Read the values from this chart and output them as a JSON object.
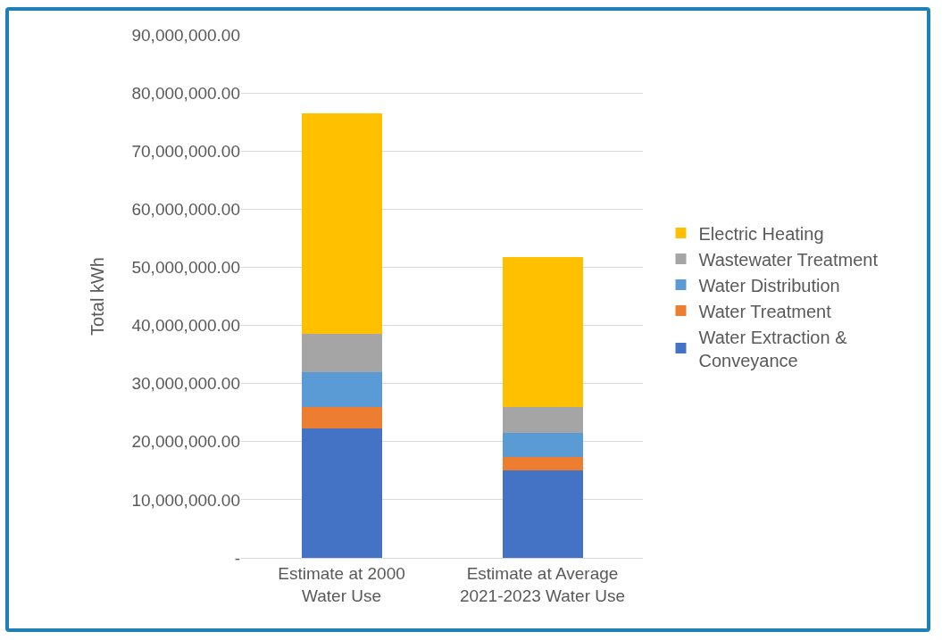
{
  "chart_data": {
    "type": "bar",
    "stacked": true,
    "ylabel": "Total kWh",
    "categories": [
      "Estimate at 2000 Water Use",
      "Estimate at Average 2021-2023 Water Use"
    ],
    "series": [
      {
        "name": "Water Extraction & Conveyance",
        "color": "#4472c4",
        "values": [
          22300000,
          15000000
        ]
      },
      {
        "name": "Water Treatment",
        "color": "#ed7d31",
        "values": [
          3700000,
          2400000
        ]
      },
      {
        "name": "Water Distribution",
        "color": "#5b9bd5",
        "values": [
          6000000,
          4100000
        ]
      },
      {
        "name": "Wastewater Treatment",
        "color": "#a5a5a5",
        "values": [
          6600000,
          4500000
        ]
      },
      {
        "name": "Electric Heating",
        "color": "#ffc000",
        "values": [
          37900000,
          25800000
        ]
      }
    ],
    "ylim": [
      0,
      90000000
    ],
    "yticks": [
      {
        "value": 0,
        "label": "-"
      },
      {
        "value": 10000000,
        "label": "10,000,000.00"
      },
      {
        "value": 20000000,
        "label": "20,000,000.00"
      },
      {
        "value": 30000000,
        "label": "30,000,000.00"
      },
      {
        "value": 40000000,
        "label": "40,000,000.00"
      },
      {
        "value": 50000000,
        "label": "50,000,000.00"
      },
      {
        "value": 60000000,
        "label": "60,000,000.00"
      },
      {
        "value": 70000000,
        "label": "70,000,000.00"
      },
      {
        "value": 80000000,
        "label": "80,000,000.00"
      },
      {
        "value": 90000000,
        "label": "90,000,000.00"
      }
    ],
    "grid": "y",
    "legend": "right"
  }
}
